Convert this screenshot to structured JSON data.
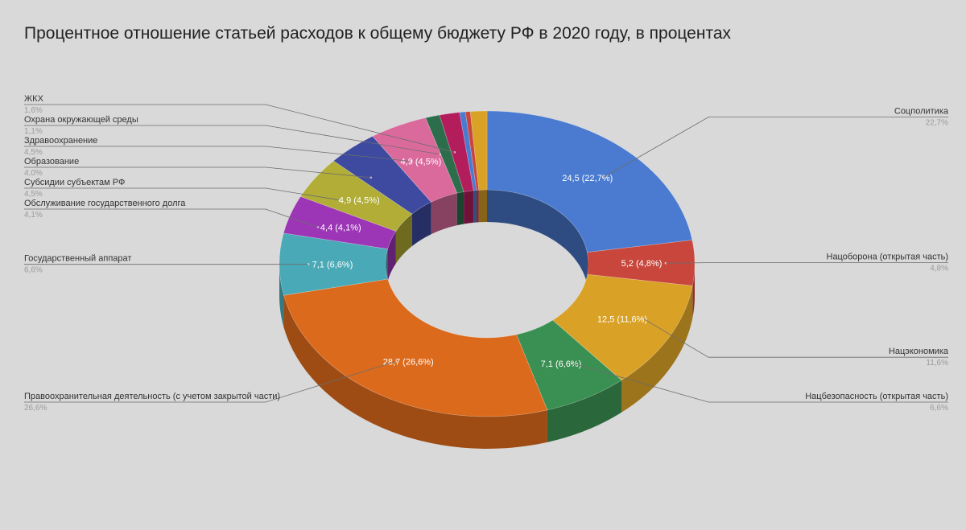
{
  "chart_data": {
    "type": "pie",
    "title": "Процентное отношение статьей расходов к общему бюджету РФ в 2020 году, в процентах",
    "slices": [
      {
        "name": "Соцполитика",
        "value": 24.5,
        "pct": "22,7%",
        "label": "24,5 (22,7%)",
        "color": "#4a7bd0"
      },
      {
        "name": "Нацоборона (открытая часть)",
        "value": 5.2,
        "pct": "4,8%",
        "label": "5,2 (4,8%)",
        "color": "#c8463c"
      },
      {
        "name": "Нацэкономика",
        "value": 12.5,
        "pct": "11,6%",
        "label": "12,5 (11,6%)",
        "color": "#d9a126"
      },
      {
        "name": "Нацбезопасность (открытая часть)",
        "value": 7.1,
        "pct": "6,6%",
        "label": "7,1 (6,6%)",
        "color": "#3a8f52"
      },
      {
        "name": "Правоохранительная деятельность (с учетом закрытой части)",
        "value": 28.7,
        "pct": "26,6%",
        "label": "28,7 (26,6%)",
        "color": "#dc6a1c"
      },
      {
        "name": "Государственный аппарат",
        "value": 7.1,
        "pct": "6,6%",
        "label": "7,1 (6,6%)",
        "color": "#4aa9b6"
      },
      {
        "name": "Обслуживание государственного долга",
        "value": 4.4,
        "pct": "4,1%",
        "label": "4,4 (4,1%)",
        "color": "#9c36b6"
      },
      {
        "name": "Субсидии субъектам РФ",
        "value": 4.9,
        "pct": "4,5%",
        "label": "4,9 (4,5%)",
        "color": "#b1ad36"
      },
      {
        "name": "Образование",
        "value": 4.3,
        "pct": "4,0%",
        "label": "",
        "color": "#3e4aa0"
      },
      {
        "name": "Здравоохранение",
        "value": 4.9,
        "pct": "4,5%",
        "label": "4,9 (4,5%)",
        "color": "#db6a9c"
      },
      {
        "name": "Охрана окружающей среды",
        "value": 1.2,
        "pct": "1,1%",
        "label": "",
        "color": "#2c6e4c"
      },
      {
        "name": "ЖКХ",
        "value": 1.7,
        "pct": "1,6%",
        "label": "",
        "color": "#b31d5c"
      },
      {
        "name": "",
        "value": 0.5,
        "pct": "",
        "label": "",
        "color": "#4a7bd0"
      },
      {
        "name": "",
        "value": 0.4,
        "pct": "",
        "label": "",
        "color": "#c8463c"
      },
      {
        "name": "",
        "value": 1.4,
        "pct": "",
        "label": "",
        "color": "#d9a126"
      }
    ],
    "donut": true,
    "three_d": true,
    "legend": "labels with leader lines"
  }
}
